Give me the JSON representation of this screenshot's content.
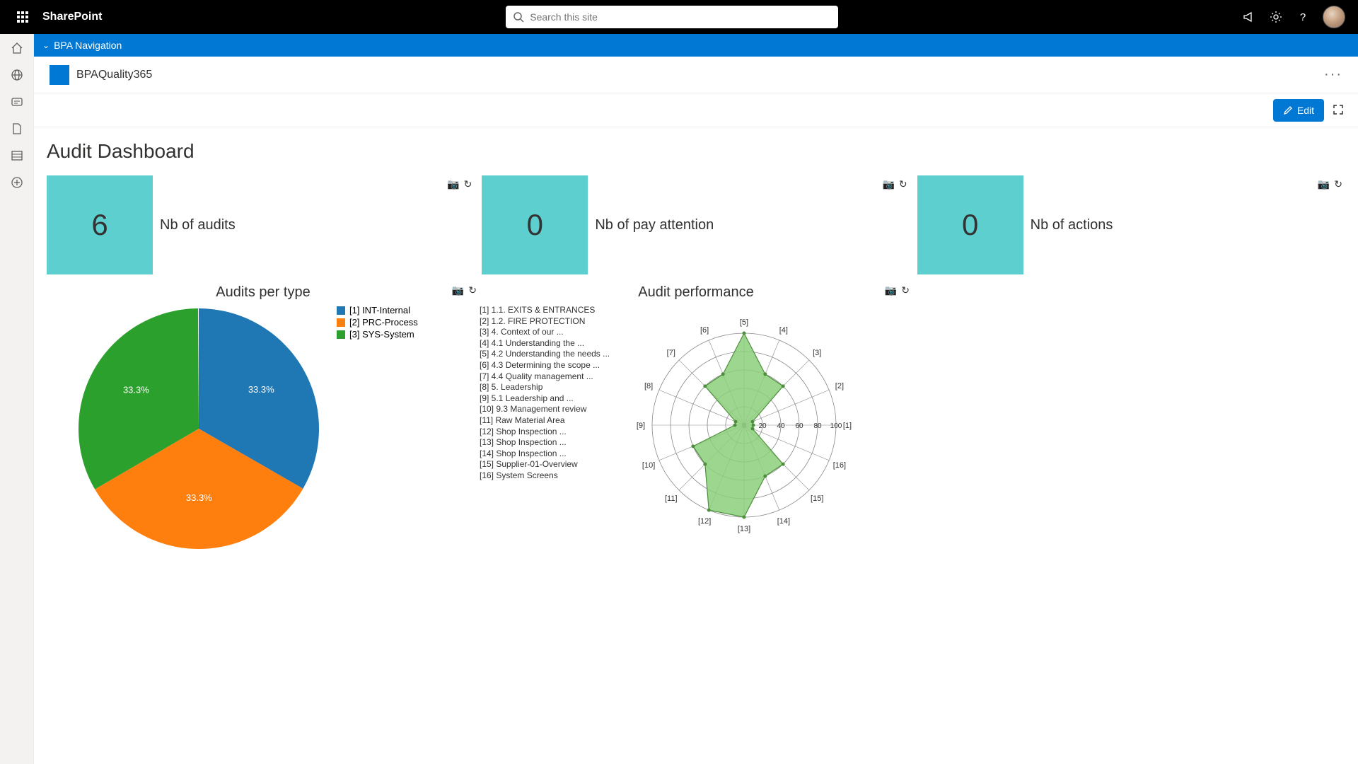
{
  "suite": {
    "brand": "SharePoint",
    "search_placeholder": "Search this site"
  },
  "bpa_nav": {
    "label": "BPA Navigation"
  },
  "site": {
    "title": "BPAQuality365"
  },
  "cmd": {
    "edit": "Edit"
  },
  "page": {
    "title": "Audit Dashboard"
  },
  "kpis": [
    {
      "value": "6",
      "label": "Nb of audits",
      "bg": "#5ecfcf"
    },
    {
      "value": "0",
      "label": "Nb of pay attention",
      "bg": "#5ecfcf"
    },
    {
      "value": "0",
      "label": "Nb of actions",
      "bg": "#5ecfcf"
    }
  ],
  "pie": {
    "title": "Audits per type",
    "type": "pie",
    "size": 350,
    "slices": [
      {
        "label": "[1] INT-Internal",
        "pct": 33.3,
        "color": "#1f77b4"
      },
      {
        "label": "[2] PRC-Process",
        "pct": 33.3,
        "color": "#ff7f0e"
      },
      {
        "label": "[3] SYS-System",
        "pct": 33.3,
        "color": "#2ca02c"
      }
    ],
    "slice_text": "33.3%",
    "label_color": "#ffffff",
    "label_fontsize": 13
  },
  "radar": {
    "title": "Audit performance",
    "type": "radar",
    "size": 300,
    "rings": [
      20,
      40,
      60,
      80,
      100
    ],
    "ring_labels": [
      "0",
      "20",
      "40",
      "60",
      "80",
      "100"
    ],
    "grid_color": "#888888",
    "fill_color": "#8ccf7a",
    "fill_opacity": 0.85,
    "stroke_color": "#4d8f3c",
    "axes": [
      "[1]",
      "[2]",
      "[3]",
      "[4]",
      "[5]",
      "[6]",
      "[7]",
      "[8]",
      "[9]",
      "[10]",
      "[11]",
      "[12]",
      "[13]",
      "[14]",
      "[15]",
      "[16]"
    ],
    "values": [
      10,
      10,
      60,
      60,
      100,
      60,
      60,
      10,
      10,
      60,
      60,
      100,
      100,
      60,
      60,
      10
    ],
    "legend": [
      "[1] 1.1. EXITS & ENTRANCES",
      "[2] 1.2. FIRE PROTECTION",
      "[3] 4. Context of our ...",
      "[4] 4.1 Understanding the ...",
      "[5] 4.2 Understanding the needs ...",
      "[6] 4.3 Determining the scope ...",
      "[7] 4.4 Quality management ...",
      "[8] 5. Leadership",
      "[9] 5.1 Leadership and ...",
      "[10] 9.3 Management review",
      "[11] Raw Material Area",
      "[12] Shop Inspection ...",
      "[13] Shop Inspection ...",
      "[14] Shop Inspection ...",
      "[15] Supplier-01-Overview",
      "[16] System Screens"
    ]
  }
}
